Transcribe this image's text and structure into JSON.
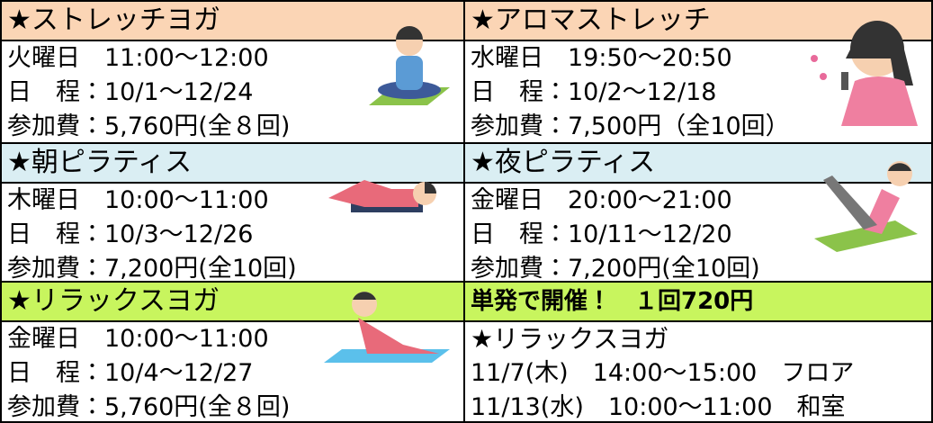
{
  "classes": [
    {
      "title": "★ストレッチヨガ",
      "lines": [
        "火曜日　11:00～12:00",
        "日　程：10/1～12/24",
        "参加費：5,760円(全８回)"
      ]
    },
    {
      "title": "★アロマストレッチ",
      "lines": [
        "水曜日　19:50～20:50",
        "日　程：10/2～12/18",
        "参加費：7,500円（全10回）"
      ]
    },
    {
      "title": "★朝ピラティス",
      "lines": [
        "木曜日　10:00～11:00",
        "日　程：10/3～12/26",
        "参加費：7,200円(全10回)"
      ]
    },
    {
      "title": "★夜ピラティス",
      "lines": [
        "金曜日　20:00～21:00",
        "日　程：10/11～12/20",
        "参加費：7,200円(全10回)"
      ]
    },
    {
      "title": "★リラックスヨガ",
      "lines": [
        "金曜日　10:00～11:00",
        "日　程：10/4～12/27",
        "参加費：5,760円(全８回)"
      ]
    }
  ],
  "special": {
    "title": "単発で開催！　１回720円",
    "subtitle": "★リラックスヨガ",
    "sessions": [
      "11/7(木)　14:00～15:00　フロア",
      "11/13(水)　10:00～11:00　和室"
    ]
  }
}
